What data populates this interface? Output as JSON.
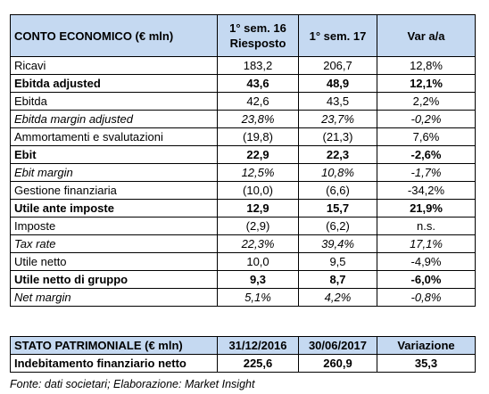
{
  "income_table": {
    "header": {
      "title": "CONTO ECONOMICO (€ mln)",
      "col1_line1": "1° sem. 16",
      "col1_line2": "Riesposto",
      "col2": "1° sem. 17",
      "col3": "Var a/a"
    },
    "rows": [
      {
        "label": "Ricavi",
        "v1": "183,2",
        "v2": "206,7",
        "var": "12,8%",
        "style": "normal"
      },
      {
        "label": "Ebitda adjusted",
        "v1": "43,6",
        "v2": "48,9",
        "var": "12,1%",
        "style": "bold"
      },
      {
        "label": "Ebitda",
        "v1": "42,6",
        "v2": "43,5",
        "var": "2,2%",
        "style": "normal"
      },
      {
        "label": "Ebitda margin adjusted",
        "v1": "23,8%",
        "v2": "23,7%",
        "var": "-0,2%",
        "style": "italic"
      },
      {
        "label": "Ammortamenti e svalutazioni",
        "v1": "(19,8)",
        "v2": "(21,3)",
        "var": "7,6%",
        "style": "normal"
      },
      {
        "label": "Ebit",
        "v1": "22,9",
        "v2": "22,3",
        "var": "-2,6%",
        "style": "bold"
      },
      {
        "label": "Ebit margin",
        "v1": "12,5%",
        "v2": "10,8%",
        "var": "-1,7%",
        "style": "italic"
      },
      {
        "label": "Gestione finanziaria",
        "v1": "(10,0)",
        "v2": "(6,6)",
        "var": "-34,2%",
        "style": "normal"
      },
      {
        "label": "Utile ante imposte",
        "v1": "12,9",
        "v2": "15,7",
        "var": "21,9%",
        "style": "bold"
      },
      {
        "label": "Imposte",
        "v1": "(2,9)",
        "v2": "(6,2)",
        "var": "n.s.",
        "style": "normal"
      },
      {
        "label": "Tax rate",
        "v1": "22,3%",
        "v2": "39,4%",
        "var": "17,1%",
        "style": "italic"
      },
      {
        "label": "Utile netto",
        "v1": "10,0",
        "v2": "9,5",
        "var": "-4,9%",
        "style": "normal"
      },
      {
        "label": "Utile netto di gruppo",
        "v1": "9,3",
        "v2": "8,7",
        "var": "-6,0%",
        "style": "bold"
      },
      {
        "label": "Net margin",
        "v1": "5,1%",
        "v2": "4,2%",
        "var": "-0,8%",
        "style": "italic"
      }
    ]
  },
  "balance_table": {
    "header": {
      "title": "STATO PATRIMONIALE (€ mln)",
      "col1": "31/12/2016",
      "col2": "30/06/2017",
      "col3": "Variazione"
    },
    "row": {
      "label": "Indebitamento finanziario netto",
      "v1": "225,6",
      "v2": "260,9",
      "var": "35,3"
    }
  },
  "source_note": "Fonte: dati societari; Elaborazione: Market Insight"
}
